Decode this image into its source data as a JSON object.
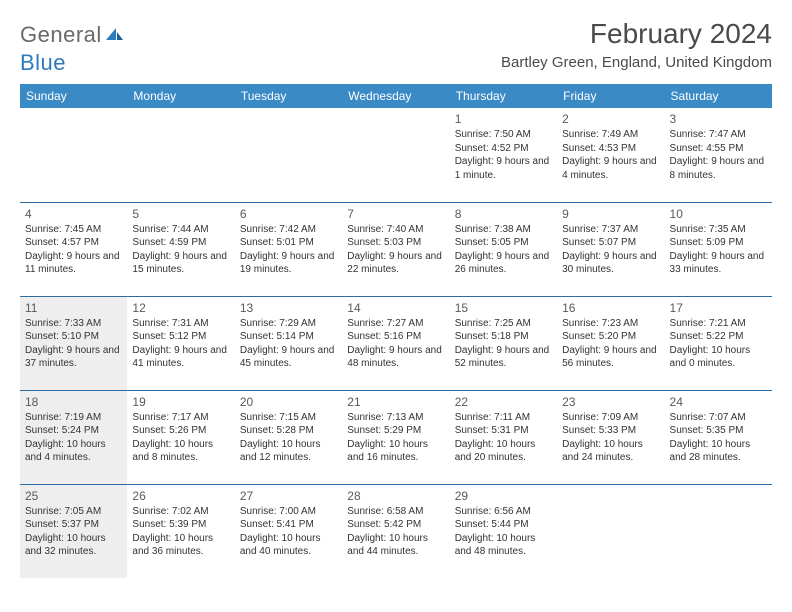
{
  "logo": {
    "text_gray": "General",
    "text_blue": "Blue"
  },
  "title": "February 2024",
  "location": "Bartley Green, England, United Kingdom",
  "colors": {
    "header_bg": "#3a8ac6",
    "header_text": "#ffffff",
    "row_divider": "#2c6ca3",
    "shade_bg": "#eeeeee",
    "text": "#333333",
    "logo_gray": "#6a6a6a",
    "logo_blue": "#2c7bbf"
  },
  "day_headers": [
    "Sunday",
    "Monday",
    "Tuesday",
    "Wednesday",
    "Thursday",
    "Friday",
    "Saturday"
  ],
  "weeks": [
    [
      null,
      null,
      null,
      null,
      {
        "n": "1",
        "sr": "7:50 AM",
        "ss": "4:52 PM",
        "dl": "9 hours and 1 minute."
      },
      {
        "n": "2",
        "sr": "7:49 AM",
        "ss": "4:53 PM",
        "dl": "9 hours and 4 minutes."
      },
      {
        "n": "3",
        "sr": "7:47 AM",
        "ss": "4:55 PM",
        "dl": "9 hours and 8 minutes."
      }
    ],
    [
      {
        "n": "4",
        "sr": "7:45 AM",
        "ss": "4:57 PM",
        "dl": "9 hours and 11 minutes."
      },
      {
        "n": "5",
        "sr": "7:44 AM",
        "ss": "4:59 PM",
        "dl": "9 hours and 15 minutes."
      },
      {
        "n": "6",
        "sr": "7:42 AM",
        "ss": "5:01 PM",
        "dl": "9 hours and 19 minutes."
      },
      {
        "n": "7",
        "sr": "7:40 AM",
        "ss": "5:03 PM",
        "dl": "9 hours and 22 minutes."
      },
      {
        "n": "8",
        "sr": "7:38 AM",
        "ss": "5:05 PM",
        "dl": "9 hours and 26 minutes."
      },
      {
        "n": "9",
        "sr": "7:37 AM",
        "ss": "5:07 PM",
        "dl": "9 hours and 30 minutes."
      },
      {
        "n": "10",
        "sr": "7:35 AM",
        "ss": "5:09 PM",
        "dl": "9 hours and 33 minutes."
      }
    ],
    [
      {
        "n": "11",
        "sr": "7:33 AM",
        "ss": "5:10 PM",
        "dl": "9 hours and 37 minutes.",
        "shade": true
      },
      {
        "n": "12",
        "sr": "7:31 AM",
        "ss": "5:12 PM",
        "dl": "9 hours and 41 minutes."
      },
      {
        "n": "13",
        "sr": "7:29 AM",
        "ss": "5:14 PM",
        "dl": "9 hours and 45 minutes."
      },
      {
        "n": "14",
        "sr": "7:27 AM",
        "ss": "5:16 PM",
        "dl": "9 hours and 48 minutes."
      },
      {
        "n": "15",
        "sr": "7:25 AM",
        "ss": "5:18 PM",
        "dl": "9 hours and 52 minutes."
      },
      {
        "n": "16",
        "sr": "7:23 AM",
        "ss": "5:20 PM",
        "dl": "9 hours and 56 minutes."
      },
      {
        "n": "17",
        "sr": "7:21 AM",
        "ss": "5:22 PM",
        "dl": "10 hours and 0 minutes."
      }
    ],
    [
      {
        "n": "18",
        "sr": "7:19 AM",
        "ss": "5:24 PM",
        "dl": "10 hours and 4 minutes.",
        "shade": true
      },
      {
        "n": "19",
        "sr": "7:17 AM",
        "ss": "5:26 PM",
        "dl": "10 hours and 8 minutes."
      },
      {
        "n": "20",
        "sr": "7:15 AM",
        "ss": "5:28 PM",
        "dl": "10 hours and 12 minutes."
      },
      {
        "n": "21",
        "sr": "7:13 AM",
        "ss": "5:29 PM",
        "dl": "10 hours and 16 minutes."
      },
      {
        "n": "22",
        "sr": "7:11 AM",
        "ss": "5:31 PM",
        "dl": "10 hours and 20 minutes."
      },
      {
        "n": "23",
        "sr": "7:09 AM",
        "ss": "5:33 PM",
        "dl": "10 hours and 24 minutes."
      },
      {
        "n": "24",
        "sr": "7:07 AM",
        "ss": "5:35 PM",
        "dl": "10 hours and 28 minutes."
      }
    ],
    [
      {
        "n": "25",
        "sr": "7:05 AM",
        "ss": "5:37 PM",
        "dl": "10 hours and 32 minutes.",
        "shade": true
      },
      {
        "n": "26",
        "sr": "7:02 AM",
        "ss": "5:39 PM",
        "dl": "10 hours and 36 minutes."
      },
      {
        "n": "27",
        "sr": "7:00 AM",
        "ss": "5:41 PM",
        "dl": "10 hours and 40 minutes."
      },
      {
        "n": "28",
        "sr": "6:58 AM",
        "ss": "5:42 PM",
        "dl": "10 hours and 44 minutes."
      },
      {
        "n": "29",
        "sr": "6:56 AM",
        "ss": "5:44 PM",
        "dl": "10 hours and 48 minutes."
      },
      null,
      null
    ]
  ],
  "labels": {
    "sunrise": "Sunrise:",
    "sunset": "Sunset:",
    "daylight": "Daylight:"
  }
}
